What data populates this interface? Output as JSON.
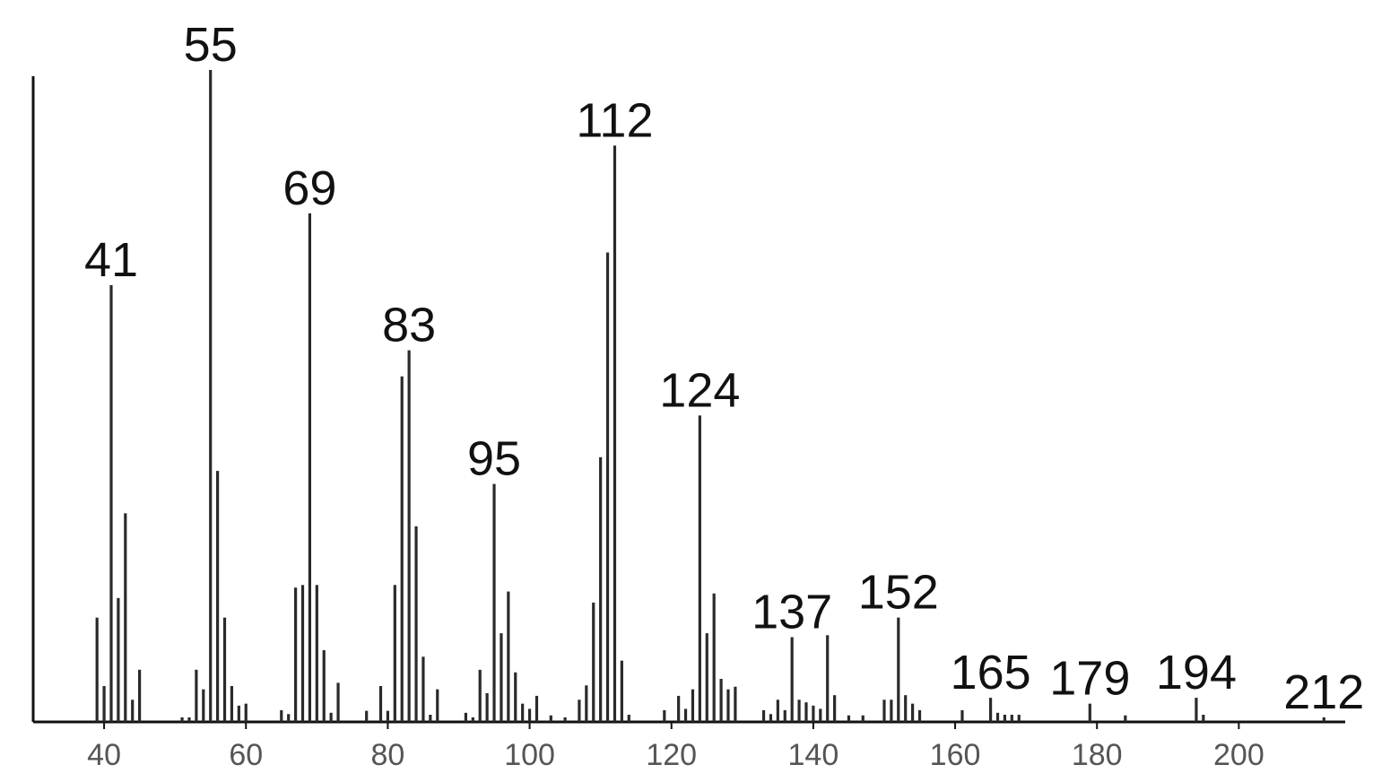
{
  "chart_data": {
    "type": "stem",
    "color": "#2a2a2a",
    "xlim": [
      30,
      215
    ],
    "ylim": [
      0,
      100
    ],
    "xticks": [
      40,
      60,
      80,
      100,
      120,
      140,
      160,
      180,
      200
    ],
    "x": [
      39,
      40,
      41,
      42,
      43,
      44,
      45,
      51,
      52,
      53,
      54,
      55,
      56,
      57,
      58,
      59,
      60,
      65,
      66,
      67,
      68,
      69,
      70,
      71,
      72,
      73,
      77,
      79,
      80,
      81,
      82,
      83,
      84,
      85,
      86,
      87,
      91,
      92,
      93,
      94,
      95,
      96,
      97,
      98,
      99,
      100,
      101,
      103,
      105,
      107,
      108,
      109,
      110,
      111,
      112,
      113,
      114,
      119,
      121,
      122,
      123,
      124,
      125,
      126,
      127,
      128,
      129,
      133,
      134,
      135,
      136,
      137,
      138,
      139,
      140,
      141,
      142,
      143,
      145,
      147,
      150,
      151,
      152,
      153,
      154,
      155,
      161,
      165,
      166,
      167,
      168,
      169,
      179,
      184,
      194,
      195,
      212
    ],
    "values": [
      16,
      5.5,
      67,
      19,
      32,
      3.4,
      8,
      0.7,
      0.7,
      8,
      5,
      100,
      38.5,
      16,
      5.5,
      2.5,
      2.8,
      1.8,
      1.2,
      20.6,
      21,
      78,
      21,
      11,
      1.4,
      6,
      1.7,
      5.5,
      1.7,
      21,
      53,
      57,
      30,
      10,
      1.1,
      5,
      1.4,
      0.7,
      8,
      4.4,
      36.5,
      13.6,
      20,
      7.6,
      2.8,
      2,
      4,
      1,
      0.7,
      3.4,
      5.6,
      18.3,
      40.6,
      72,
      88.4,
      9.4,
      1.1,
      1.8,
      4,
      2,
      5,
      47,
      13.6,
      19.7,
      6.6,
      5,
      5.4,
      1.8,
      1.2,
      3.4,
      1.8,
      13,
      3.4,
      3,
      2.5,
      2,
      13.3,
      4.1,
      1,
      1,
      3.4,
      3.4,
      16,
      4.1,
      2.8,
      1.8,
      1.8,
      3.7,
      1.4,
      1.1,
      1.1,
      1.1,
      2.8,
      1,
      3.7,
      1.1,
      0.7
    ],
    "labeled_x": [
      41,
      55,
      69,
      83,
      95,
      112,
      124,
      137,
      152,
      165,
      179,
      194,
      212
    ]
  }
}
